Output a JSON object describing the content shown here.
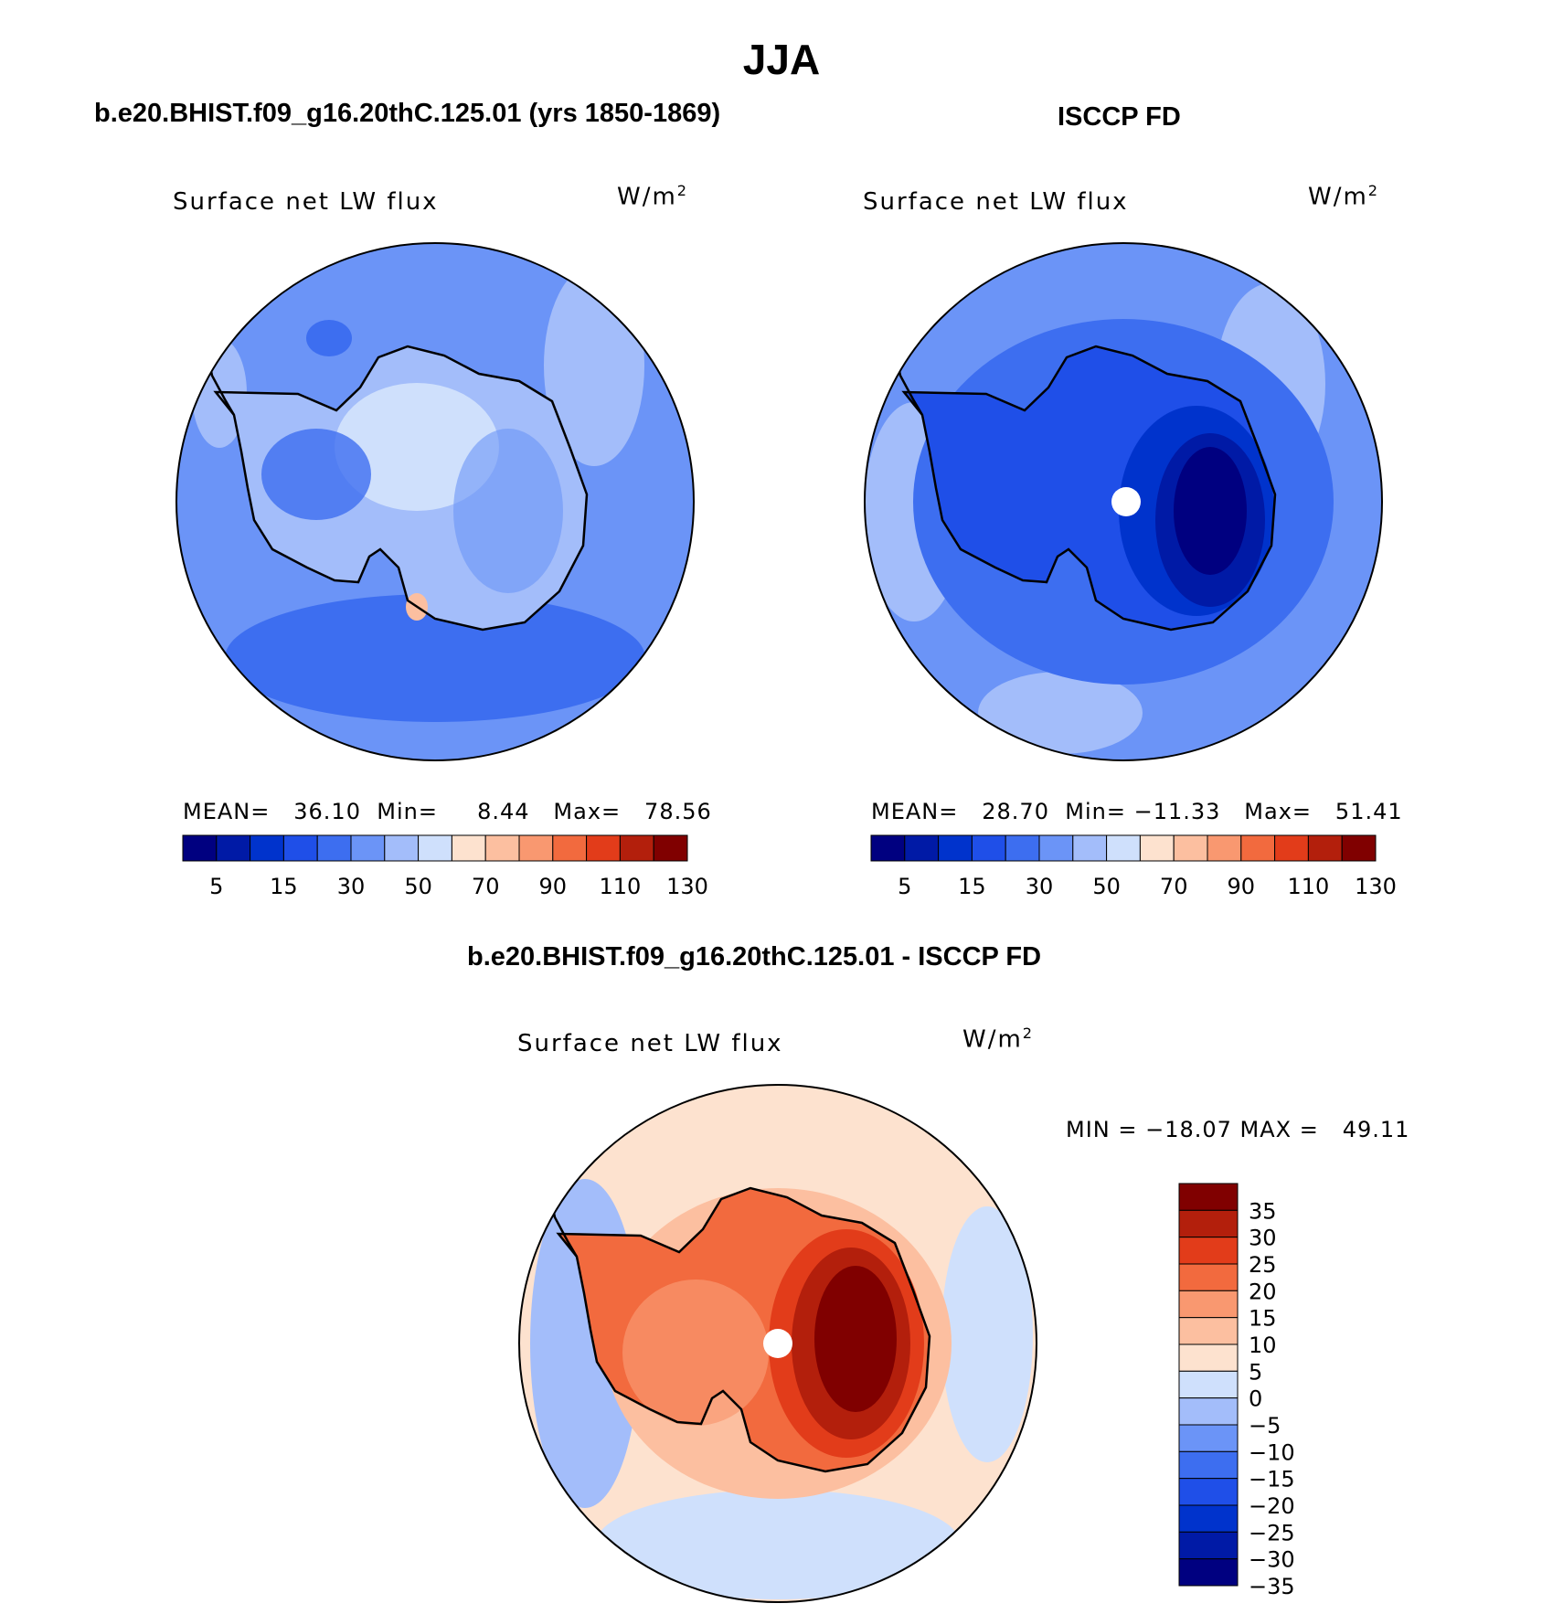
{
  "title": "JJA",
  "panels": [
    {
      "id": "model",
      "subtitle": "b.e20.BHIST.f09_g16.20thC.125.01 (yrs 1850-1869)",
      "variable": "Surface net LW flux",
      "units": "W/m",
      "units_sup": "2",
      "stats": {
        "mean_label": "MEAN=",
        "mean": "36.10",
        "min_label": "Min=",
        "min": "8.44",
        "max_label": "Max=",
        "max": "78.56"
      }
    },
    {
      "id": "obs",
      "subtitle": "ISCCP FD",
      "variable": "Surface net LW flux",
      "units": "W/m",
      "units_sup": "2",
      "stats": {
        "mean_label": "MEAN=",
        "mean": "28.70",
        "min_label": "Min=",
        "min": "−11.33",
        "max_label": "Max=",
        "max": "51.41"
      }
    },
    {
      "id": "diff",
      "subtitle": "b.e20.BHIST.f09_g16.20thC.125.01 - ISCCP FD",
      "variable": "Surface net LW flux",
      "units": "W/m",
      "units_sup": "2",
      "stats": {
        "text": "MIN = −18.07 MAX =   49.11"
      }
    }
  ],
  "chart_data": [
    {
      "type": "heatmap",
      "title": "Surface net LW flux",
      "units": "W/m2",
      "projection": "south polar stereographic",
      "colorbar": {
        "orientation": "horizontal",
        "colors": [
          "#000080",
          "#001aa6",
          "#0033cc",
          "#1f4fe8",
          "#3d6ef0",
          "#6b94f7",
          "#a3bdfa",
          "#cfe0fc",
          "#fde2cf",
          "#fcbfa0",
          "#f99870",
          "#f26a3e",
          "#e23c1a",
          "#b31f0c",
          "#800000"
        ],
        "tick_labels": [
          "5",
          "15",
          "30",
          "50",
          "70",
          "90",
          "110",
          "130"
        ],
        "dominant_range": [
          30,
          60
        ]
      },
      "stats": {
        "mean": 36.1,
        "min": 8.44,
        "max": 78.56
      }
    },
    {
      "type": "heatmap",
      "title": "Surface net LW flux",
      "units": "W/m2",
      "projection": "south polar stereographic",
      "colorbar": {
        "orientation": "horizontal",
        "colors": [
          "#000080",
          "#001aa6",
          "#0033cc",
          "#1f4fe8",
          "#3d6ef0",
          "#6b94f7",
          "#a3bdfa",
          "#cfe0fc",
          "#fde2cf",
          "#fcbfa0",
          "#f99870",
          "#f26a3e",
          "#e23c1a",
          "#b31f0c",
          "#800000"
        ],
        "tick_labels": [
          "5",
          "15",
          "30",
          "50",
          "70",
          "90",
          "110",
          "130"
        ],
        "dominant_range": [
          -10,
          50
        ]
      },
      "stats": {
        "mean": 28.7,
        "min": -11.33,
        "max": 51.41
      }
    },
    {
      "type": "heatmap",
      "title": "Surface net LW flux",
      "units": "W/m2",
      "projection": "south polar stereographic",
      "colorbar": {
        "orientation": "vertical",
        "colors": [
          "#000080",
          "#001aa6",
          "#0033cc",
          "#1f4fe8",
          "#3d6ef0",
          "#6b94f7",
          "#a3bdfa",
          "#cfe0fc",
          "#fde2cf",
          "#fcbfa0",
          "#f99870",
          "#f26a3e",
          "#e23c1a",
          "#b31f0c",
          "#800000"
        ],
        "tick_labels": [
          "35",
          "30",
          "25",
          "20",
          "15",
          "10",
          "5",
          "0",
          "−5",
          "−10",
          "−15",
          "−20",
          "−25",
          "−30",
          "−35"
        ]
      },
      "stats": {
        "min": -18.07,
        "max": 49.11
      }
    }
  ]
}
